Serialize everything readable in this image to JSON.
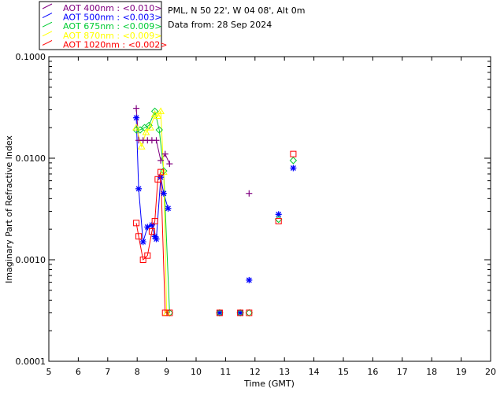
{
  "chart_data": {
    "type": "scatter",
    "title": "",
    "site": "PML, N 50 22', W 04 08', Alt 0m",
    "data_from": "Data from: 28 Sep 2024",
    "xlabel": "Time (GMT)",
    "ylabel": "Imaginary Part of Refractive Index",
    "xlim": [
      5,
      20
    ],
    "ylim": [
      0.0001,
      0.1
    ],
    "yscale": "log",
    "x_ticks": [
      "5",
      "6",
      "7",
      "8",
      "9",
      "10",
      "11",
      "12",
      "13",
      "14",
      "15",
      "16",
      "17",
      "18",
      "19",
      "20"
    ],
    "y_ticks": [
      "0.0001",
      "0.0010",
      "0.0100",
      "0.1000"
    ],
    "grid": false,
    "legend_position": "top-left",
    "series": [
      {
        "name": "AOT  400nm : <0.010>",
        "color": "#800080",
        "marker": "plus",
        "x": [
          7.97,
          8.05,
          8.2,
          8.35,
          8.5,
          8.65,
          8.8,
          8.95,
          9.1,
          11.8
        ],
        "y": [
          0.031,
          0.015,
          0.015,
          0.015,
          0.015,
          0.015,
          0.0095,
          0.011,
          0.0088,
          0.0045
        ]
      },
      {
        "name": "AOT  500nm : <0.003>",
        "color": "#0000ff",
        "marker": "star",
        "x": [
          7.97,
          8.05,
          8.2,
          8.35,
          8.5,
          8.6,
          8.65,
          8.8,
          8.9,
          9.05,
          10.8,
          11.5,
          11.8,
          12.8,
          13.3
        ],
        "y": [
          0.025,
          0.005,
          0.0015,
          0.0021,
          0.0022,
          0.0017,
          0.0016,
          0.0065,
          0.0045,
          0.0032,
          0.0003,
          0.0003,
          0.00063,
          0.0028,
          0.008
        ]
      },
      {
        "name": "AOT  675nm : <0.009>",
        "color": "#00cc33",
        "marker": "diamond",
        "x": [
          7.97,
          8.1,
          8.25,
          8.4,
          8.6,
          8.75,
          8.9,
          9.1,
          10.8,
          11.5,
          11.8,
          12.8,
          13.3
        ],
        "y": [
          0.019,
          0.019,
          0.02,
          0.021,
          0.029,
          0.019,
          0.0075,
          0.0003,
          0.0003,
          0.0003,
          0.0003,
          0.0025,
          0.0095
        ]
      },
      {
        "name": "AOT  870nm : <0.009>",
        "color": "#ffff00",
        "marker": "triangle",
        "x": [
          7.97,
          8.15,
          8.3,
          8.45,
          8.6,
          8.7,
          8.8,
          8.9,
          9.0
        ],
        "y": [
          0.02,
          0.013,
          0.018,
          0.02,
          0.027,
          0.026,
          0.029,
          0.0073,
          0.0003
        ]
      },
      {
        "name": "AOT 1020nm : <0.002>",
        "color": "#ff0000",
        "marker": "square",
        "x": [
          7.97,
          8.05,
          8.2,
          8.35,
          8.5,
          8.6,
          8.7,
          8.8,
          8.95,
          9.1,
          10.8,
          11.5,
          11.8,
          12.8,
          13.3
        ],
        "y": [
          0.0023,
          0.0017,
          0.001,
          0.0011,
          0.0019,
          0.0024,
          0.0062,
          0.0073,
          0.0003,
          0.0003,
          0.0003,
          0.0003,
          0.0003,
          0.0024,
          0.011
        ]
      }
    ]
  }
}
